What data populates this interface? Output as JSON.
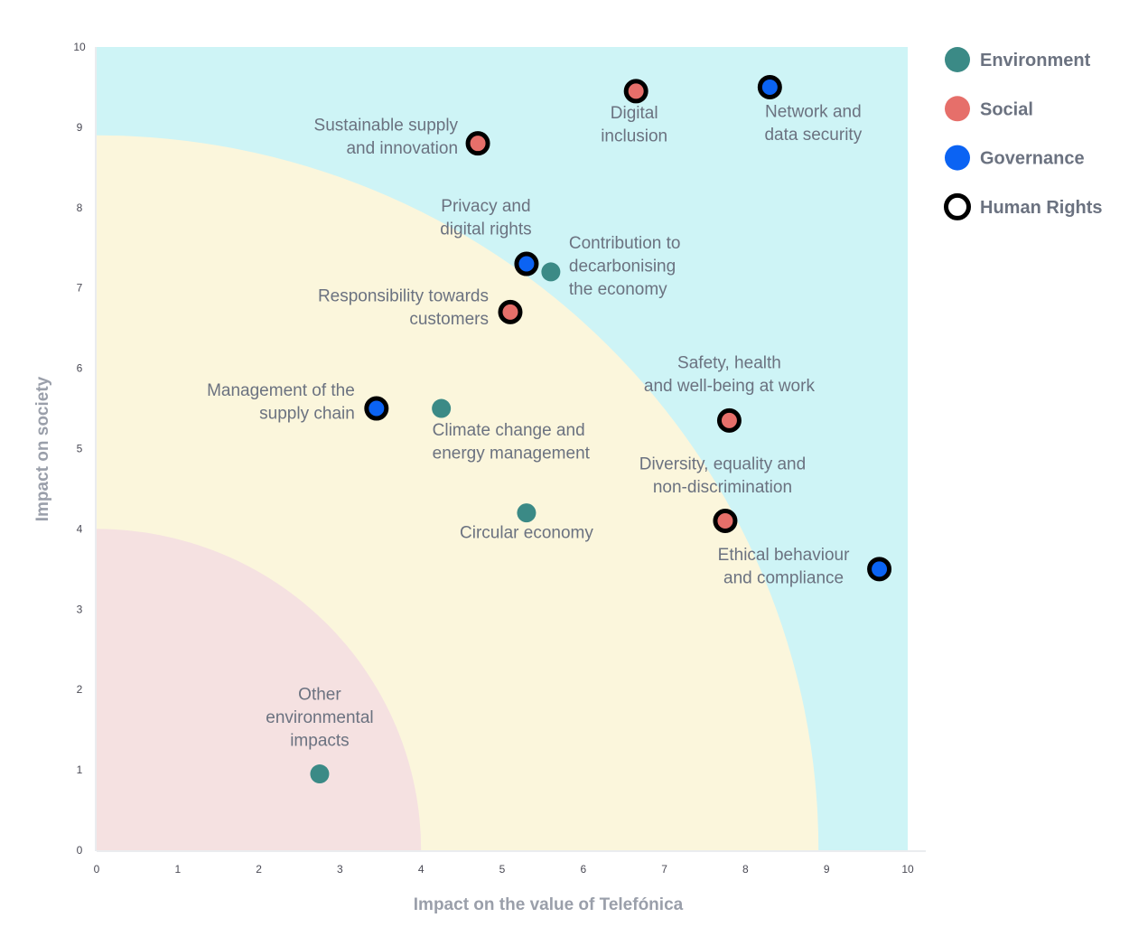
{
  "chart_data": {
    "type": "scatter",
    "xlabel": "Impact on the value of Telefónica",
    "ylabel": "Impact on society",
    "xlim": [
      0,
      10
    ],
    "ylim": [
      0,
      10
    ],
    "x_ticks": [
      "0",
      "1",
      "2",
      "3",
      "4",
      "5",
      "6",
      "7",
      "8",
      "9",
      "10"
    ],
    "y_ticks": [
      "0",
      "1",
      "2",
      "3",
      "4",
      "5",
      "6",
      "7",
      "8",
      "9",
      "10"
    ],
    "grid": false,
    "legend_position": "top-right",
    "zones": [
      {
        "radius": 4.0,
        "color": "#f5e1e1"
      },
      {
        "radius": 8.9,
        "color": "#fbf6dc"
      },
      {
        "radius": null,
        "color": "#cef4f6"
      }
    ],
    "categories": [
      {
        "name": "Environment",
        "color": "#3b8a86",
        "marker": "filled"
      },
      {
        "name": "Social",
        "color": "#e66f6a",
        "marker": "filled"
      },
      {
        "name": "Governance",
        "color": "#0b63f3",
        "marker": "filled"
      },
      {
        "name": "Human Rights",
        "color": "#000000",
        "marker": "ring"
      }
    ],
    "points": [
      {
        "x": 4.7,
        "y": 8.8,
        "category": "Social",
        "human_rights": true,
        "label": [
          "Sustainable supply",
          "and innovation"
        ]
      },
      {
        "x": 6.65,
        "y": 9.45,
        "category": "Social",
        "human_rights": true,
        "label": [
          "Digital",
          "inclusion"
        ]
      },
      {
        "x": 8.3,
        "y": 9.5,
        "category": "Governance",
        "human_rights": true,
        "label": [
          "Network and",
          "data security"
        ]
      },
      {
        "x": 5.3,
        "y": 7.3,
        "category": "Governance",
        "human_rights": true,
        "label": [
          "Privacy and",
          "digital rights"
        ]
      },
      {
        "x": 5.6,
        "y": 7.2,
        "category": "Environment",
        "human_rights": false,
        "label": [
          "Contribution to",
          "decarbonising",
          "the economy"
        ]
      },
      {
        "x": 5.1,
        "y": 6.7,
        "category": "Social",
        "human_rights": true,
        "label": [
          "Responsibility towards",
          "customers"
        ]
      },
      {
        "x": 3.45,
        "y": 5.5,
        "category": "Governance",
        "human_rights": true,
        "label": [
          "Management of the",
          "supply chain"
        ]
      },
      {
        "x": 4.25,
        "y": 5.5,
        "category": "Environment",
        "human_rights": false,
        "label": [
          "Climate change and",
          "energy management"
        ]
      },
      {
        "x": 7.8,
        "y": 5.35,
        "category": "Social",
        "human_rights": true,
        "label": [
          "Safety, health",
          "and well-being at work"
        ]
      },
      {
        "x": 5.3,
        "y": 4.2,
        "category": "Environment",
        "human_rights": false,
        "label": [
          "Circular economy"
        ]
      },
      {
        "x": 7.75,
        "y": 4.1,
        "category": "Social",
        "human_rights": true,
        "label": [
          "Diversity, equality and",
          "non-discrimination"
        ]
      },
      {
        "x": 9.65,
        "y": 3.5,
        "category": "Governance",
        "human_rights": true,
        "label": [
          "Ethical behaviour",
          "and compliance"
        ]
      },
      {
        "x": 2.75,
        "y": 0.95,
        "category": "Environment",
        "human_rights": false,
        "label": [
          "Other",
          "environmental",
          "impacts"
        ]
      }
    ]
  }
}
